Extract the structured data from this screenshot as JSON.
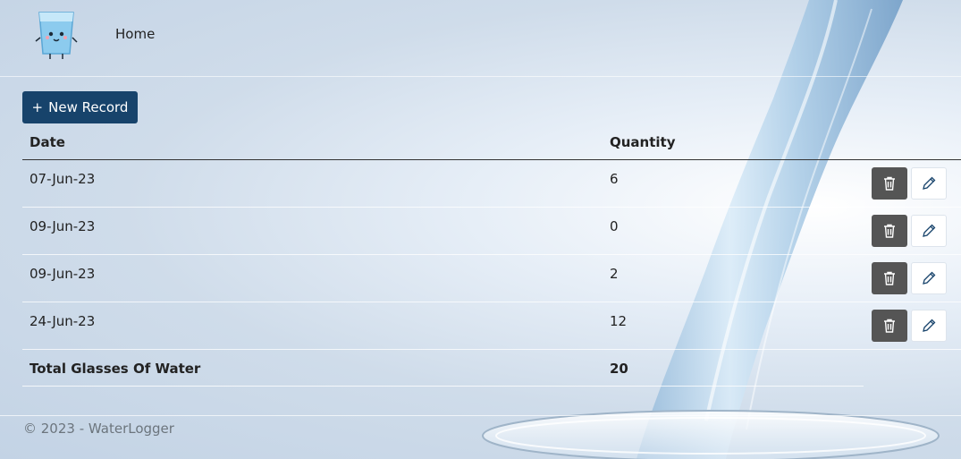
{
  "header": {
    "logo_icon": "water-glass-mascot-icon",
    "nav": {
      "home_label": "Home"
    }
  },
  "toolbar": {
    "new_record_icon": "plus-icon",
    "new_record_label": "New Record"
  },
  "table": {
    "columns": {
      "date": "Date",
      "quantity": "Quantity"
    },
    "rows": [
      {
        "date": "07-Jun-23",
        "quantity": "6"
      },
      {
        "date": "09-Jun-23",
        "quantity": "0"
      },
      {
        "date": "09-Jun-23",
        "quantity": "2"
      },
      {
        "date": "24-Jun-23",
        "quantity": "12"
      }
    ],
    "row_actions": {
      "delete_icon": "trash-icon",
      "edit_icon": "pencil-icon"
    },
    "total": {
      "label": "Total Glasses Of Water",
      "value": "20"
    }
  },
  "footer": {
    "text": "© 2023 - WaterLogger"
  },
  "colors": {
    "primary_button": "#17436b",
    "delete_button": "#555555",
    "footer_text": "#6c757d"
  }
}
